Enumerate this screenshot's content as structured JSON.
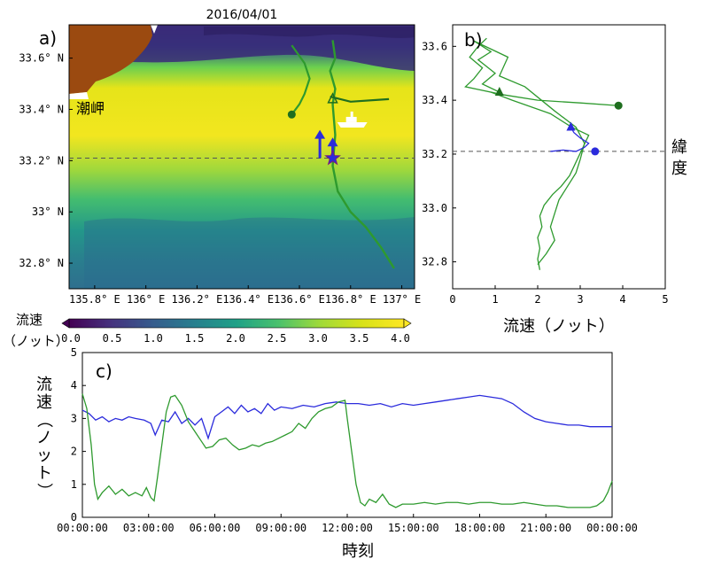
{
  "colors": {
    "blue": "#2b2bdc",
    "green": "#2e9a2e",
    "darkgreen": "#1f6e1f",
    "land": "#9b4a10",
    "dashed": "#555555"
  },
  "chart_data": [
    {
      "id": "a",
      "type": "heatmap",
      "panel_label": "a)",
      "title": "2016/04/01",
      "place_label": "潮岬",
      "x_ticks": [
        "135.8° E",
        "136° E",
        "136.2° E",
        "136.4° E",
        "136.6° E",
        "136.8° E",
        "137° E"
      ],
      "y_ticks": [
        "33.6° N",
        "33.4° N",
        "33.2° N",
        "33° N",
        "32.8° N"
      ],
      "xlim": [
        135.7,
        137.05
      ],
      "ylim": [
        32.7,
        33.73
      ],
      "colorbar": {
        "label_line1": "流速",
        "label_line2": "（ノット）",
        "ticks": [
          "0.0",
          "0.5",
          "1.0",
          "1.5",
          "2.0",
          "2.5",
          "3.0",
          "3.5",
          "4.0"
        ],
        "range": [
          0,
          4
        ]
      },
      "reference_lat": 33.21,
      "ship_track": [
        [
          136.57,
          33.65
        ],
        [
          136.62,
          33.58
        ],
        [
          136.64,
          33.52
        ],
        [
          136.62,
          33.46
        ],
        [
          136.6,
          33.42
        ],
        [
          136.57,
          33.38
        ]
      ],
      "ship_track_2": [
        [
          136.73,
          33.67
        ],
        [
          136.74,
          33.6
        ],
        [
          136.72,
          33.55
        ],
        [
          136.74,
          33.48
        ],
        [
          136.73,
          33.42
        ],
        [
          136.74,
          33.3
        ],
        [
          136.73,
          33.18
        ],
        [
          136.75,
          33.08
        ],
        [
          136.8,
          33.0
        ],
        [
          136.86,
          32.94
        ],
        [
          136.92,
          32.86
        ],
        [
          136.97,
          32.78
        ]
      ],
      "ship_track_3": [
        [
          136.72,
          33.45
        ],
        [
          136.8,
          33.43
        ],
        [
          136.95,
          33.44
        ]
      ],
      "start_marker": [
        136.57,
        33.38
      ],
      "end_marker": [
        136.73,
        33.44
      ],
      "star": [
        136.73,
        33.21
      ],
      "blue_arrows": [
        [
          136.68,
          33.21,
          33.32
        ],
        [
          136.73,
          33.21,
          33.29
        ]
      ],
      "ship_icon": [
        136.81,
        33.35
      ]
    },
    {
      "id": "b",
      "type": "line",
      "panel_label": "b)",
      "xlabel": "流速（ノット）",
      "ylabel": "緯度",
      "x_ticks": [
        "0",
        "1",
        "2",
        "3",
        "4",
        "5"
      ],
      "y_ticks": [
        "32.8",
        "33.0",
        "33.2",
        "33.4",
        "33.6"
      ],
      "xlim": [
        0,
        5
      ],
      "ylim": [
        32.7,
        33.68
      ],
      "reference_lat": 33.21,
      "series": [
        {
          "color": "green",
          "points": [
            [
              3.9,
              33.38
            ],
            [
              3.0,
              33.39
            ],
            [
              2.0,
              33.4
            ],
            [
              1.2,
              33.42
            ],
            [
              0.6,
              33.44
            ],
            [
              0.3,
              33.45
            ],
            [
              0.5,
              33.48
            ],
            [
              0.7,
              33.52
            ],
            [
              0.4,
              33.56
            ],
            [
              0.6,
              33.6
            ],
            [
              0.8,
              33.63
            ]
          ]
        },
        {
          "color": "green",
          "points": [
            [
              1.1,
              33.43
            ],
            [
              0.7,
              33.46
            ],
            [
              1.0,
              33.5
            ],
            [
              0.6,
              33.55
            ],
            [
              0.9,
              33.58
            ],
            [
              0.5,
              33.62
            ],
            [
              1.3,
              33.56
            ],
            [
              1.1,
              33.49
            ],
            [
              1.7,
              33.45
            ],
            [
              2.4,
              33.36
            ],
            [
              2.9,
              33.3
            ],
            [
              3.1,
              33.24
            ],
            [
              3.0,
              33.18
            ],
            [
              2.9,
              33.13
            ],
            [
              2.7,
              33.08
            ],
            [
              2.5,
              33.03
            ],
            [
              2.4,
              32.98
            ],
            [
              2.3,
              32.93
            ],
            [
              2.4,
              32.88
            ],
            [
              2.2,
              32.83
            ],
            [
              2.0,
              32.79
            ]
          ]
        },
        {
          "color": "green",
          "points": [
            [
              0.9,
              33.43
            ],
            [
              1.4,
              33.4
            ],
            [
              2.3,
              33.35
            ],
            [
              2.8,
              33.3
            ],
            [
              3.2,
              33.27
            ],
            [
              3.05,
              33.22
            ],
            [
              2.9,
              33.17
            ],
            [
              2.75,
              33.12
            ],
            [
              2.55,
              33.08
            ],
            [
              2.35,
              33.05
            ],
            [
              2.15,
              33.01
            ],
            [
              2.05,
              32.97
            ],
            [
              2.1,
              32.93
            ],
            [
              2.0,
              32.89
            ],
            [
              2.05,
              32.85
            ],
            [
              2.0,
              32.81
            ],
            [
              2.05,
              32.77
            ]
          ]
        },
        {
          "color": "blue",
          "points": [
            [
              2.3,
              33.21
            ],
            [
              2.6,
              33.215
            ],
            [
              2.9,
              33.21
            ],
            [
              3.1,
              33.225
            ],
            [
              3.2,
              33.24
            ],
            [
              3.0,
              33.26
            ],
            [
              2.85,
              33.28
            ],
            [
              2.78,
              33.3
            ]
          ]
        }
      ],
      "start_marker_green": [
        3.9,
        33.38
      ],
      "end_marker_green": [
        1.1,
        33.43
      ],
      "start_marker_blue": [
        3.35,
        33.21
      ],
      "end_marker_blue": [
        2.78,
        33.3
      ]
    },
    {
      "id": "c",
      "type": "line",
      "panel_label": "c)",
      "xlabel": "時刻",
      "ylabel": "流速（ノット）",
      "x_ticks": [
        "00:00:00",
        "03:00:00",
        "06:00:00",
        "09:00:00",
        "12:00:00",
        "15:00:00",
        "18:00:00",
        "21:00:00",
        "00:00:00"
      ],
      "y_ticks": [
        "0",
        "1",
        "2",
        "3",
        "4",
        "5"
      ],
      "xlim": [
        0,
        24
      ],
      "ylim": [
        0,
        5
      ],
      "series": [
        {
          "color": "blue",
          "points": [
            [
              0,
              3.25
            ],
            [
              0.3,
              3.15
            ],
            [
              0.6,
              2.95
            ],
            [
              0.9,
              3.05
            ],
            [
              1.2,
              2.9
            ],
            [
              1.5,
              3.0
            ],
            [
              1.8,
              2.95
            ],
            [
              2.1,
              3.05
            ],
            [
              2.4,
              3.0
            ],
            [
              2.8,
              2.95
            ],
            [
              3.1,
              2.85
            ],
            [
              3.3,
              2.5
            ],
            [
              3.6,
              2.95
            ],
            [
              3.9,
              2.9
            ],
            [
              4.2,
              3.2
            ],
            [
              4.5,
              2.85
            ],
            [
              4.8,
              3.0
            ],
            [
              5.1,
              2.8
            ],
            [
              5.4,
              3.0
            ],
            [
              5.7,
              2.4
            ],
            [
              6.0,
              3.05
            ],
            [
              6.3,
              3.2
            ],
            [
              6.6,
              3.35
            ],
            [
              6.9,
              3.15
            ],
            [
              7.2,
              3.4
            ],
            [
              7.5,
              3.2
            ],
            [
              7.8,
              3.3
            ],
            [
              8.1,
              3.15
            ],
            [
              8.4,
              3.45
            ],
            [
              8.7,
              3.25
            ],
            [
              9.0,
              3.35
            ],
            [
              9.5,
              3.3
            ],
            [
              10,
              3.4
            ],
            [
              10.5,
              3.35
            ],
            [
              11,
              3.45
            ],
            [
              11.5,
              3.5
            ],
            [
              12,
              3.45
            ],
            [
              12.5,
              3.45
            ],
            [
              13,
              3.4
            ],
            [
              13.5,
              3.45
            ],
            [
              14,
              3.35
            ],
            [
              14.5,
              3.45
            ],
            [
              15,
              3.4
            ],
            [
              15.5,
              3.45
            ],
            [
              16,
              3.5
            ],
            [
              16.5,
              3.55
            ],
            [
              17,
              3.6
            ],
            [
              17.5,
              3.65
            ],
            [
              18,
              3.7
            ],
            [
              18.5,
              3.65
            ],
            [
              19,
              3.6
            ],
            [
              19.5,
              3.45
            ],
            [
              20,
              3.2
            ],
            [
              20.5,
              3.0
            ],
            [
              21,
              2.9
            ],
            [
              21.5,
              2.85
            ],
            [
              22,
              2.8
            ],
            [
              22.5,
              2.8
            ],
            [
              23,
              2.75
            ],
            [
              23.5,
              2.75
            ],
            [
              24,
              2.75
            ]
          ]
        },
        {
          "color": "green",
          "points": [
            [
              0,
              3.75
            ],
            [
              0.2,
              3.3
            ],
            [
              0.4,
              2.2
            ],
            [
              0.55,
              1.0
            ],
            [
              0.7,
              0.55
            ],
            [
              0.9,
              0.75
            ],
            [
              1.2,
              0.95
            ],
            [
              1.5,
              0.7
            ],
            [
              1.8,
              0.85
            ],
            [
              2.1,
              0.65
            ],
            [
              2.4,
              0.75
            ],
            [
              2.7,
              0.65
            ],
            [
              2.9,
              0.9
            ],
            [
              3.1,
              0.6
            ],
            [
              3.25,
              0.5
            ],
            [
              3.4,
              1.2
            ],
            [
              3.6,
              2.2
            ],
            [
              3.8,
              3.2
            ],
            [
              4.0,
              3.65
            ],
            [
              4.2,
              3.7
            ],
            [
              4.5,
              3.4
            ],
            [
              4.8,
              2.9
            ],
            [
              5.1,
              2.6
            ],
            [
              5.4,
              2.3
            ],
            [
              5.6,
              2.1
            ],
            [
              5.9,
              2.15
            ],
            [
              6.2,
              2.35
            ],
            [
              6.5,
              2.4
            ],
            [
              6.8,
              2.2
            ],
            [
              7.1,
              2.05
            ],
            [
              7.4,
              2.1
            ],
            [
              7.7,
              2.2
            ],
            [
              8.0,
              2.15
            ],
            [
              8.3,
              2.25
            ],
            [
              8.6,
              2.3
            ],
            [
              8.9,
              2.4
            ],
            [
              9.2,
              2.5
            ],
            [
              9.5,
              2.6
            ],
            [
              9.8,
              2.85
            ],
            [
              10.1,
              2.7
            ],
            [
              10.4,
              3.0
            ],
            [
              10.7,
              3.2
            ],
            [
              11.0,
              3.3
            ],
            [
              11.3,
              3.35
            ],
            [
              11.6,
              3.5
            ],
            [
              11.9,
              3.55
            ],
            [
              12.0,
              3.0
            ],
            [
              12.2,
              2.0
            ],
            [
              12.4,
              1.0
            ],
            [
              12.6,
              0.45
            ],
            [
              12.8,
              0.35
            ],
            [
              13.0,
              0.55
            ],
            [
              13.3,
              0.45
            ],
            [
              13.6,
              0.7
            ],
            [
              13.9,
              0.4
            ],
            [
              14.2,
              0.3
            ],
            [
              14.5,
              0.4
            ],
            [
              15,
              0.4
            ],
            [
              15.5,
              0.45
            ],
            [
              16,
              0.4
            ],
            [
              16.5,
              0.45
            ],
            [
              17,
              0.45
            ],
            [
              17.5,
              0.4
            ],
            [
              18,
              0.45
            ],
            [
              18.5,
              0.45
            ],
            [
              19,
              0.4
            ],
            [
              19.5,
              0.4
            ],
            [
              20,
              0.45
            ],
            [
              20.5,
              0.4
            ],
            [
              21,
              0.35
            ],
            [
              21.5,
              0.35
            ],
            [
              22,
              0.3
            ],
            [
              22.5,
              0.3
            ],
            [
              23,
              0.3
            ],
            [
              23.3,
              0.35
            ],
            [
              23.6,
              0.5
            ],
            [
              23.8,
              0.75
            ],
            [
              24,
              1.1
            ]
          ]
        }
      ]
    }
  ]
}
